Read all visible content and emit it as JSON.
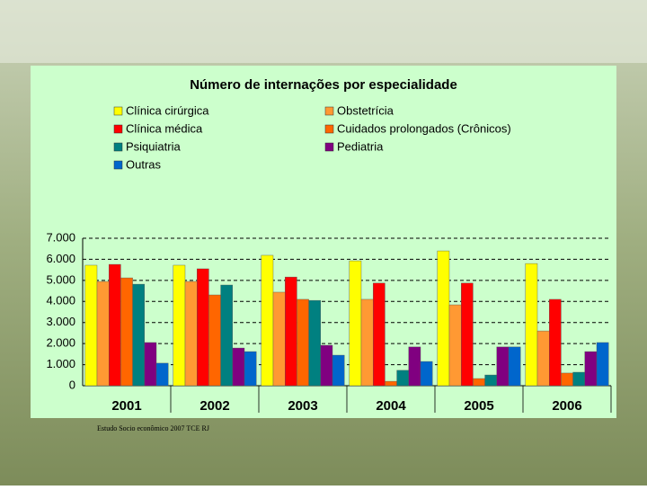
{
  "chart_data": {
    "type": "bar",
    "title": "Número de internações por especialidade",
    "footnote": "Estudo Socio econômico 2007 TCE RJ",
    "categories": [
      "2001",
      "2002",
      "2003",
      "2004",
      "2005",
      "2006"
    ],
    "series": [
      {
        "name": "Clínica cirúrgica",
        "color": "#ffff00",
        "values": [
          5720,
          5720,
          6190,
          5930,
          6400,
          5800
        ]
      },
      {
        "name": "Obstetrícia",
        "color": "#ff9933",
        "values": [
          4950,
          4950,
          4440,
          4100,
          3840,
          2600
        ]
      },
      {
        "name": "Clínica médica",
        "color": "#ff0000",
        "values": [
          5760,
          5550,
          5160,
          4870,
          4870,
          4100
        ]
      },
      {
        "name": "Cuidados prolongados (Crônicos)",
        "color": "#ff6600",
        "values": [
          5120,
          4310,
          4100,
          210,
          340,
          600
        ]
      },
      {
        "name": "Psiquiatria",
        "color": "#008080",
        "values": [
          4820,
          4780,
          4050,
          730,
          510,
          640
        ]
      },
      {
        "name": "Pediatria",
        "color": "#800080",
        "values": [
          2050,
          1790,
          1920,
          1840,
          1840,
          1620
        ]
      },
      {
        "name": "Outras",
        "color": "#0066cc",
        "values": [
          1070,
          1620,
          1450,
          1150,
          1840,
          2050
        ]
      }
    ],
    "ylim": [
      0,
      7000
    ],
    "yticks": [
      0,
      {
        "value": 1000,
        "label": "1.000"
      },
      {
        "value": 2000,
        "label": "2.000"
      },
      {
        "value": 3000,
        "label": "3.000"
      },
      {
        "value": 4000,
        "label": "4.000"
      },
      {
        "value": 5000,
        "label": "5.000"
      },
      {
        "value": 6000,
        "label": "6.000"
      },
      {
        "value": 7000,
        "label": "7.000"
      }
    ],
    "grid": true
  }
}
